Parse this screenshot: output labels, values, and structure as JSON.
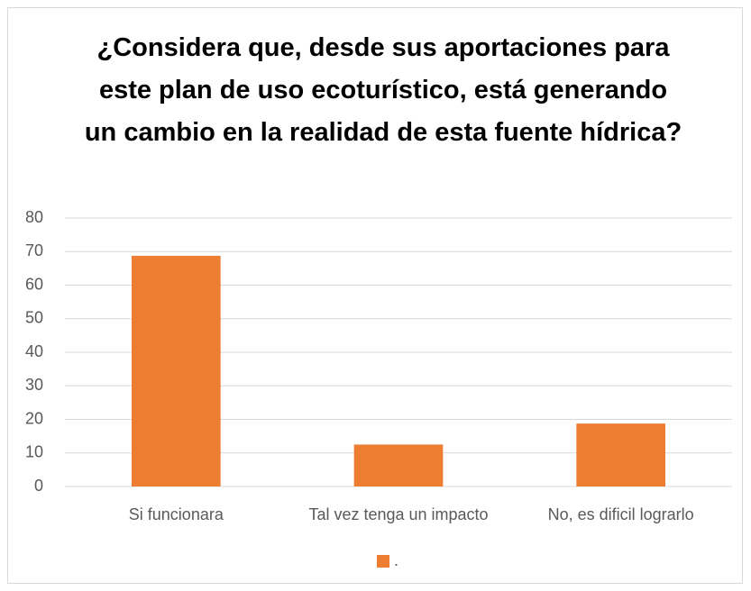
{
  "chart_data": {
    "type": "bar",
    "title": "¿Considera que, desde sus aportaciones para este plan de uso ecoturístico, está generando un cambio en la realidad de esta fuente hídrica?",
    "categories": [
      "Si funcionara",
      "Tal vez tenga un impacto",
      "No, es dificil lograrlo"
    ],
    "series": [
      {
        "name": ".",
        "color": "#ed7d31",
        "values": [
          68.75,
          12.5,
          18.75
        ]
      }
    ],
    "ylim": [
      0,
      80
    ],
    "yticks": [
      0,
      10,
      20,
      30,
      40,
      50,
      60,
      70,
      80
    ],
    "grid": true,
    "legend": "bottom"
  }
}
